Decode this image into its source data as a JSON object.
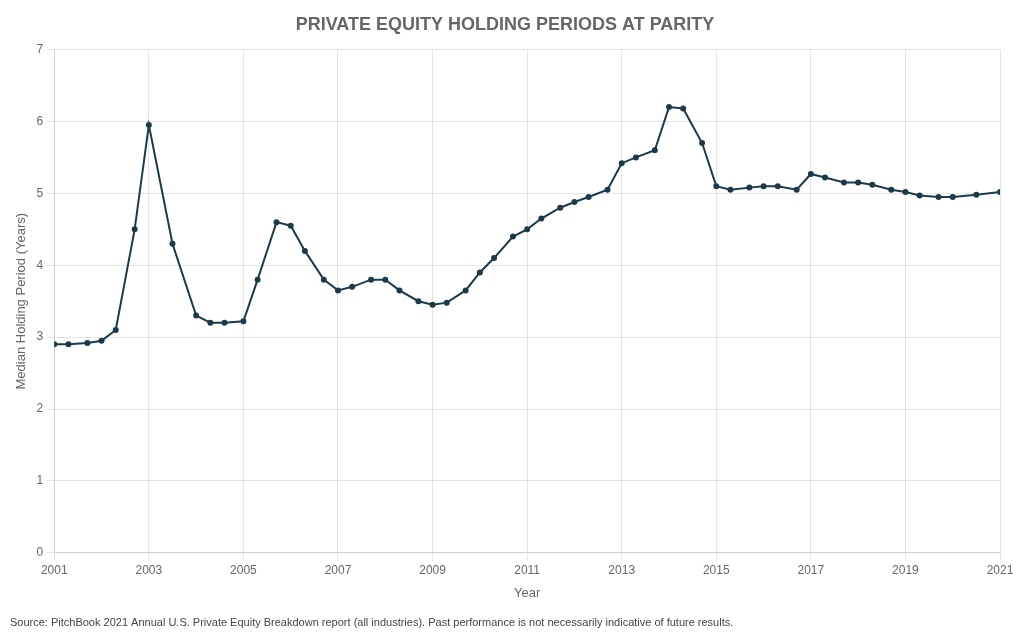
{
  "chart_data": {
    "type": "line",
    "title": "PRIVATE EQUITY HOLDING PERIODS AT PARITY",
    "xlabel": "Year",
    "ylabel": "Median Holding Period (Years)",
    "source": "Source: PitchBook 2021 Annual U.S. Private Equity Breakdown report (all industries). Past performance is not necessarily indicative of future results.",
    "x": [
      2001,
      2001.3,
      2001.7,
      2002,
      2002.3,
      2002.7,
      2003,
      2003.5,
      2004,
      2004.3,
      2004.6,
      2005,
      2005.3,
      2005.7,
      2006,
      2006.3,
      2006.7,
      2007,
      2007.3,
      2007.7,
      2008,
      2008.3,
      2008.7,
      2009,
      2009.3,
      2009.7,
      2010,
      2010.3,
      2010.7,
      2011,
      2011.3,
      2011.7,
      2012,
      2012.3,
      2012.7,
      2013,
      2013.3,
      2013.7,
      2014,
      2014.3,
      2014.7,
      2015,
      2015.3,
      2015.7,
      2016,
      2016.3,
      2016.7,
      2017,
      2017.3,
      2017.7,
      2018,
      2018.3,
      2018.7,
      2019,
      2019.3,
      2019.7,
      2020,
      2020.5,
      2021
    ],
    "values": [
      2.9,
      2.9,
      2.92,
      2.95,
      3.1,
      4.5,
      5.95,
      4.3,
      3.3,
      3.2,
      3.2,
      3.22,
      3.8,
      4.6,
      4.55,
      4.2,
      3.8,
      3.65,
      3.7,
      3.8,
      3.8,
      3.65,
      3.5,
      3.45,
      3.48,
      3.65,
      3.9,
      4.1,
      4.4,
      4.5,
      4.65,
      4.8,
      4.88,
      4.95,
      5.05,
      5.42,
      5.5,
      5.6,
      6.2,
      6.18,
      5.7,
      5.1,
      5.05,
      5.08,
      5.1,
      5.1,
      5.05,
      5.27,
      5.22,
      5.15,
      5.15,
      5.12,
      5.05,
      5.02,
      4.97,
      4.95,
      4.95,
      4.98,
      5.02
    ],
    "color": "#1b3a4b",
    "marker": "circle",
    "xlim": [
      2001,
      2021
    ],
    "xticks": [
      2001,
      2003,
      2005,
      2007,
      2009,
      2011,
      2013,
      2015,
      2017,
      2019,
      2021
    ],
    "ylim": [
      0,
      7
    ],
    "yticks": [
      0,
      1,
      2,
      3,
      4,
      5,
      6,
      7
    ],
    "grid": true
  }
}
